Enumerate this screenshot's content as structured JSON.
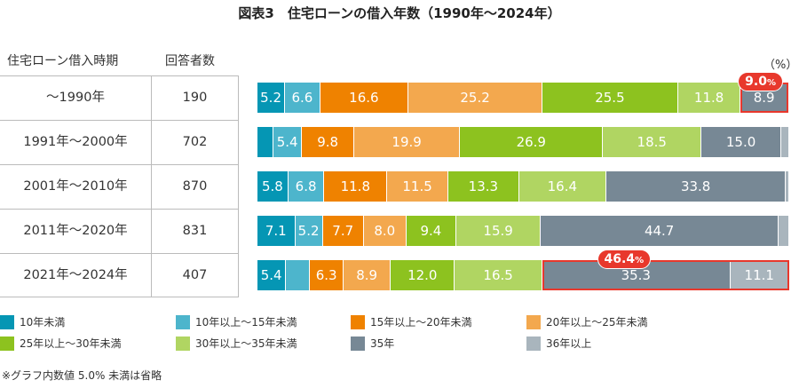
{
  "chart_data": {
    "type": "bar",
    "orientation": "horizontal",
    "stacked": true,
    "title": "図表3　住宅ローンの借入年数（1990年〜2024年）",
    "unit": "（%）",
    "table_headers": [
      "住宅ローン借入時期",
      "回答者数"
    ],
    "categories": [
      "〜1990年",
      "1991年〜2000年",
      "2001年〜2010年",
      "2011年〜2020年",
      "2021年〜2024年"
    ],
    "respondents": [
      "190",
      "702",
      "870",
      "831",
      "407"
    ],
    "series": [
      {
        "name": "10年未満",
        "color": "#0596b4",
        "values": [
          5.2,
          3.0,
          5.8,
          7.1,
          5.4
        ],
        "labels": [
          "5.2",
          null,
          "5.8",
          "7.1",
          "5.4"
        ]
      },
      {
        "name": "10年以上〜15年未満",
        "color": "#4db5cc",
        "values": [
          6.6,
          5.4,
          6.8,
          5.2,
          4.5
        ],
        "labels": [
          "6.6",
          "5.4",
          "6.8",
          "5.2",
          null
        ]
      },
      {
        "name": "15年以上〜20年未満",
        "color": "#ef8200",
        "values": [
          16.6,
          9.8,
          11.8,
          7.7,
          6.3
        ],
        "labels": [
          "16.6",
          "9.8",
          "11.8",
          "7.7",
          "6.3"
        ]
      },
      {
        "name": "20年以上〜25年未満",
        "color": "#f3a84e",
        "values": [
          25.2,
          19.9,
          11.5,
          8.0,
          8.9
        ],
        "labels": [
          "25.2",
          "19.9",
          "11.5",
          "8.0",
          "8.9"
        ]
      },
      {
        "name": "25年以上〜30年未満",
        "color": "#8dc21f",
        "values": [
          25.5,
          26.9,
          13.3,
          9.4,
          12.0
        ],
        "labels": [
          "25.5",
          "26.9",
          "13.3",
          "9.4",
          "12.0"
        ]
      },
      {
        "name": "30年以上〜35年未満",
        "color": "#b0d562",
        "values": [
          11.8,
          18.5,
          16.4,
          15.9,
          16.5
        ],
        "labels": [
          "11.8",
          "18.5",
          "16.4",
          "15.9",
          "16.5"
        ]
      },
      {
        "name": "35年",
        "color": "#778895",
        "values": [
          8.9,
          15.0,
          33.8,
          44.7,
          35.3
        ],
        "labels": [
          "8.9",
          "15.0",
          "33.8",
          "44.7",
          "35.3"
        ]
      },
      {
        "name": "36年以上",
        "color": "#a9b5bd",
        "values": [
          0.2,
          1.5,
          0.6,
          2.0,
          11.1
        ],
        "labels": [
          null,
          null,
          null,
          null,
          "11.1"
        ]
      }
    ],
    "annotations": [
      {
        "row": 0,
        "from": 6,
        "to": 6,
        "text": "9.0",
        "suffix": "%"
      },
      {
        "row": 4,
        "from": 6,
        "to": 7,
        "text": "46.4",
        "suffix": "%"
      }
    ],
    "note": "※グラフ内数値 5.0% 未満は省略"
  }
}
